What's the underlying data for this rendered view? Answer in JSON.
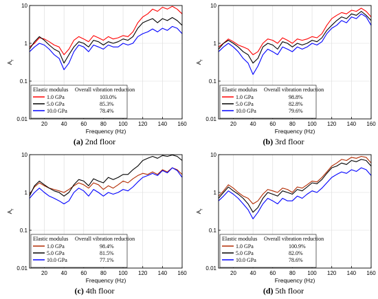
{
  "figure": {
    "panels": [
      {
        "caption_label": "(a)",
        "caption_text": "2nd floor",
        "legend_header": [
          "Elastic modulus",
          "Overall vibration reduction"
        ],
        "legend_rows": [
          {
            "modulus": "1.0 GPa",
            "reduction": "103.0%",
            "color": "#ff0000"
          },
          {
            "modulus": "5.0 GPa",
            "reduction": "85.3%",
            "color": "#000000"
          },
          {
            "modulus": "10.0 GPa",
            "reduction": "78.4%",
            "color": "#0000ff"
          }
        ]
      },
      {
        "caption_label": "(b)",
        "caption_text": "3rd floor",
        "legend_header": [
          "Elastic modulus",
          "Overall vibration reduction"
        ],
        "legend_rows": [
          {
            "modulus": "1.0 GPa",
            "reduction": "98.8%",
            "color": "#ff0000"
          },
          {
            "modulus": "5.0 GPa",
            "reduction": "82.8%",
            "color": "#000000"
          },
          {
            "modulus": "10.0 GPa",
            "reduction": "79.6%",
            "color": "#0000ff"
          }
        ]
      },
      {
        "caption_label": "(c)",
        "caption_text": "4th floor",
        "legend_header": [
          "Elastic modulus",
          "Overall vibration reduction"
        ],
        "legend_rows": [
          {
            "modulus": "1.0 GPa",
            "reduction": "98.4%",
            "color": "#b22a00"
          },
          {
            "modulus": "5.0 GPa",
            "reduction": "81.5%",
            "color": "#000000"
          },
          {
            "modulus": "10.0 GPa",
            "reduction": "77.1%",
            "color": "#0000ff"
          }
        ]
      },
      {
        "caption_label": "(d)",
        "caption_text": "5th floor",
        "legend_header": [
          "Elastic modulus",
          "Overall vibration reduction"
        ],
        "legend_rows": [
          {
            "modulus": "1.0 GPa",
            "reduction": "100.9%",
            "color": "#b22a00"
          },
          {
            "modulus": "5.0 GPa",
            "reduction": "82.0%",
            "color": "#000000"
          },
          {
            "modulus": "10.0 GPa",
            "reduction": "78.6%",
            "color": "#0000ff"
          }
        ]
      }
    ]
  },
  "chart_data": [
    {
      "type": "line",
      "title": "",
      "xlabel": "Frequency (Hz)",
      "ylabel": "A",
      "ylabel_subscript": "r",
      "xlim": [
        5,
        160
      ],
      "ylim": [
        0.01,
        10
      ],
      "yscale": "log",
      "xticks": [
        "20",
        "40",
        "60",
        "80",
        "100",
        "120",
        "140",
        "160"
      ],
      "yticks": [
        "0.01",
        "0.1",
        "1",
        "10"
      ],
      "grid": true,
      "legend": "bottom-left",
      "x": [
        5,
        10,
        15,
        20,
        25,
        30,
        35,
        40,
        45,
        50,
        55,
        60,
        65,
        70,
        75,
        80,
        85,
        90,
        95,
        100,
        105,
        110,
        115,
        120,
        125,
        130,
        135,
        140,
        145,
        150,
        155,
        160
      ],
      "series": [
        {
          "name": "1.0 GPa",
          "color": "#ff0000",
          "values": [
            0.8,
            1.0,
            1.4,
            1.3,
            1.1,
            0.9,
            0.8,
            0.5,
            0.7,
            1.2,
            1.5,
            1.3,
            1.1,
            1.6,
            1.4,
            1.2,
            1.5,
            1.3,
            1.4,
            1.6,
            1.5,
            2.0,
            3.5,
            5.0,
            6.0,
            8.0,
            7.0,
            9.0,
            8.0,
            9.5,
            8.0,
            6.0
          ]
        },
        {
          "name": "5.0 GPa",
          "color": "#000000",
          "values": [
            0.7,
            1.1,
            1.5,
            1.2,
            0.9,
            0.7,
            0.6,
            0.3,
            0.5,
            0.8,
            1.1,
            1.0,
            0.8,
            1.2,
            1.1,
            0.9,
            1.1,
            1.0,
            1.1,
            1.3,
            1.2,
            1.5,
            2.5,
            3.5,
            4.0,
            4.5,
            3.5,
            4.5,
            4.0,
            4.8,
            4.0,
            3.0
          ]
        },
        {
          "name": "10.0 GPa",
          "color": "#0000ff",
          "values": [
            0.6,
            0.8,
            1.0,
            0.9,
            0.7,
            0.5,
            0.4,
            0.2,
            0.3,
            0.6,
            0.9,
            0.8,
            0.6,
            0.9,
            0.8,
            0.7,
            0.9,
            0.8,
            0.8,
            1.0,
            0.9,
            1.0,
            1.5,
            1.8,
            2.0,
            2.4,
            2.0,
            2.5,
            2.2,
            2.8,
            2.5,
            1.8
          ]
        }
      ]
    },
    {
      "type": "line",
      "title": "",
      "xlabel": "Frequency (Hz)",
      "ylabel": "A",
      "ylabel_subscript": "r",
      "xlim": [
        5,
        160
      ],
      "ylim": [
        0.01,
        10
      ],
      "yscale": "log",
      "xticks": [
        "20",
        "40",
        "60",
        "80",
        "100",
        "120",
        "140",
        "160"
      ],
      "yticks": [
        "0.01",
        "0.1",
        "1",
        "10"
      ],
      "grid": true,
      "legend": "bottom-left",
      "x": [
        5,
        10,
        15,
        20,
        25,
        30,
        35,
        40,
        45,
        50,
        55,
        60,
        65,
        70,
        75,
        80,
        85,
        90,
        95,
        100,
        105,
        110,
        115,
        120,
        125,
        130,
        135,
        140,
        145,
        150,
        155,
        160
      ],
      "series": [
        {
          "name": "1.0 GPa",
          "color": "#ff0000",
          "values": [
            0.8,
            1.0,
            1.3,
            1.1,
            0.9,
            0.8,
            0.7,
            0.5,
            0.6,
            1.0,
            1.3,
            1.2,
            1.0,
            1.4,
            1.2,
            1.0,
            1.3,
            1.2,
            1.3,
            1.5,
            1.4,
            1.8,
            3.0,
            4.5,
            5.5,
            6.5,
            6.0,
            7.5,
            7.0,
            8.5,
            7.0,
            5.0
          ]
        },
        {
          "name": "5.0 GPa",
          "color": "#000000",
          "values": [
            0.7,
            1.0,
            1.2,
            1.0,
            0.8,
            0.6,
            0.5,
            0.3,
            0.4,
            0.8,
            1.0,
            0.9,
            0.7,
            1.1,
            1.0,
            0.8,
            1.0,
            0.9,
            1.0,
            1.2,
            1.1,
            1.4,
            2.2,
            3.0,
            4.0,
            5.0,
            4.5,
            6.0,
            5.5,
            7.0,
            5.5,
            4.0
          ]
        },
        {
          "name": "10.0 GPa",
          "color": "#0000ff",
          "values": [
            0.6,
            0.8,
            1.0,
            0.8,
            0.6,
            0.4,
            0.3,
            0.15,
            0.25,
            0.5,
            0.7,
            0.6,
            0.5,
            0.8,
            0.7,
            0.6,
            0.8,
            0.7,
            0.8,
            1.0,
            0.9,
            1.1,
            1.8,
            2.5,
            3.0,
            4.0,
            3.5,
            5.0,
            4.5,
            6.0,
            5.0,
            3.0
          ]
        }
      ]
    },
    {
      "type": "line",
      "title": "",
      "xlabel": "Frequency (Hz)",
      "ylabel": "A",
      "ylabel_subscript": "r",
      "xlim": [
        5,
        160
      ],
      "ylim": [
        0.01,
        10
      ],
      "yscale": "log",
      "xticks": [
        "20",
        "40",
        "60",
        "80",
        "100",
        "120",
        "140",
        "160"
      ],
      "yticks": [
        "0.01",
        "0.1",
        "1",
        "10"
      ],
      "grid": true,
      "legend": "bottom-left",
      "x": [
        5,
        10,
        15,
        20,
        25,
        30,
        35,
        40,
        45,
        50,
        55,
        60,
        65,
        70,
        75,
        80,
        85,
        90,
        95,
        100,
        105,
        110,
        115,
        120,
        125,
        130,
        135,
        140,
        145,
        150,
        155,
        160
      ],
      "series": [
        {
          "name": "1.0 GPa",
          "color": "#b22a00",
          "values": [
            0.9,
            1.4,
            1.8,
            1.5,
            1.3,
            1.2,
            1.1,
            1.0,
            1.2,
            1.5,
            1.8,
            1.6,
            1.3,
            1.8,
            1.6,
            1.2,
            1.5,
            1.3,
            1.6,
            2.0,
            1.8,
            2.3,
            2.8,
            3.2,
            3.0,
            3.5,
            3.0,
            4.0,
            3.5,
            4.5,
            4.0,
            3.0
          ]
        },
        {
          "name": "5.0 GPa",
          "color": "#000000",
          "values": [
            0.8,
            1.5,
            2.0,
            1.6,
            1.3,
            1.1,
            1.0,
            0.8,
            1.0,
            1.6,
            2.2,
            2.0,
            1.5,
            2.3,
            2.0,
            1.8,
            2.5,
            2.2,
            2.5,
            3.0,
            3.0,
            4.0,
            5.0,
            7.0,
            8.0,
            9.0,
            8.0,
            9.5,
            9.0,
            9.8,
            9.0,
            7.0
          ]
        },
        {
          "name": "10.0 GPa",
          "color": "#0000ff",
          "values": [
            0.7,
            1.0,
            1.3,
            1.0,
            0.8,
            0.7,
            0.6,
            0.5,
            0.6,
            1.0,
            1.3,
            1.1,
            0.8,
            1.2,
            1.0,
            0.8,
            1.0,
            0.9,
            1.0,
            1.2,
            1.1,
            1.4,
            1.9,
            2.5,
            2.8,
            3.2,
            2.8,
            3.8,
            3.3,
            4.5,
            3.8,
            2.5
          ]
        }
      ]
    },
    {
      "type": "line",
      "title": "",
      "xlabel": "Frequency (Hz)",
      "ylabel": "A",
      "ylabel_subscript": "r",
      "xlim": [
        5,
        160
      ],
      "ylim": [
        0.01,
        10
      ],
      "yscale": "log",
      "xticks": [
        "20",
        "40",
        "60",
        "80",
        "100",
        "120",
        "140",
        "160"
      ],
      "yticks": [
        "0.01",
        "0.1",
        "1",
        "10"
      ],
      "grid": true,
      "legend": "bottom-left",
      "x": [
        5,
        10,
        15,
        20,
        25,
        30,
        35,
        40,
        45,
        50,
        55,
        60,
        65,
        70,
        75,
        80,
        85,
        90,
        95,
        100,
        105,
        110,
        115,
        120,
        125,
        130,
        135,
        140,
        145,
        150,
        155,
        160
      ],
      "series": [
        {
          "name": "1.0 GPa",
          "color": "#b22a00",
          "values": [
            0.8,
            1.1,
            1.6,
            1.3,
            1.0,
            0.8,
            0.7,
            0.5,
            0.6,
            0.9,
            1.2,
            1.1,
            1.0,
            1.3,
            1.2,
            1.0,
            1.4,
            1.3,
            1.6,
            2.0,
            1.9,
            2.5,
            3.5,
            5.0,
            6.0,
            7.5,
            7.0,
            8.5,
            8.0,
            9.0,
            8.5,
            6.0
          ]
        },
        {
          "name": "5.0 GPa",
          "color": "#000000",
          "values": [
            0.7,
            1.0,
            1.4,
            1.1,
            0.9,
            0.7,
            0.5,
            0.3,
            0.4,
            0.7,
            1.0,
            0.9,
            0.8,
            1.1,
            1.0,
            0.9,
            1.2,
            1.1,
            1.4,
            1.8,
            1.7,
            2.2,
            3.2,
            4.5,
            5.0,
            6.0,
            5.5,
            7.0,
            6.5,
            7.5,
            7.0,
            5.0
          ]
        },
        {
          "name": "10.0 GPa",
          "color": "#0000ff",
          "values": [
            0.6,
            0.8,
            1.1,
            0.9,
            0.7,
            0.5,
            0.35,
            0.2,
            0.3,
            0.5,
            0.7,
            0.6,
            0.5,
            0.7,
            0.6,
            0.6,
            0.8,
            0.7,
            0.9,
            1.1,
            1.0,
            1.3,
            1.8,
            2.5,
            3.0,
            3.5,
            3.2,
            4.0,
            3.6,
            4.5,
            4.0,
            2.8
          ]
        }
      ]
    }
  ]
}
